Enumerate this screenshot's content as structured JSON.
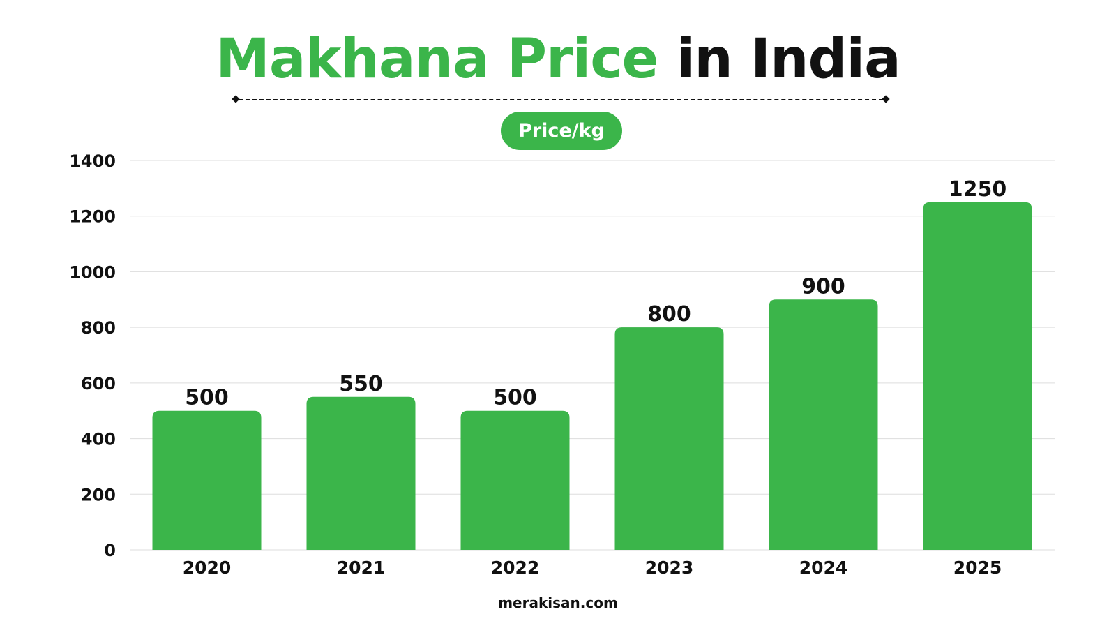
{
  "header": {
    "title_green": "Makhana Price",
    "title_dark": "in India",
    "pill_label": "Price/kg"
  },
  "colors": {
    "accent": "#3bb54a",
    "text": "#111111",
    "grid": "#dddddd"
  },
  "chart_data": {
    "type": "bar",
    "title": "Makhana Price in India",
    "categories": [
      "2020",
      "2021",
      "2022",
      "2023",
      "2024",
      "2025"
    ],
    "values": [
      500,
      550,
      500,
      800,
      900,
      1250
    ],
    "value_labels": [
      "500",
      "550",
      "500",
      "800",
      "900",
      "1250"
    ],
    "ylabel": "Price/kg",
    "xlabel": "",
    "ylim": [
      0,
      1400
    ],
    "yticks": [
      0,
      200,
      400,
      600,
      800,
      1000,
      1200,
      1400
    ],
    "grid": true,
    "legend": "none"
  },
  "footer": {
    "source": "merakisan.com"
  }
}
